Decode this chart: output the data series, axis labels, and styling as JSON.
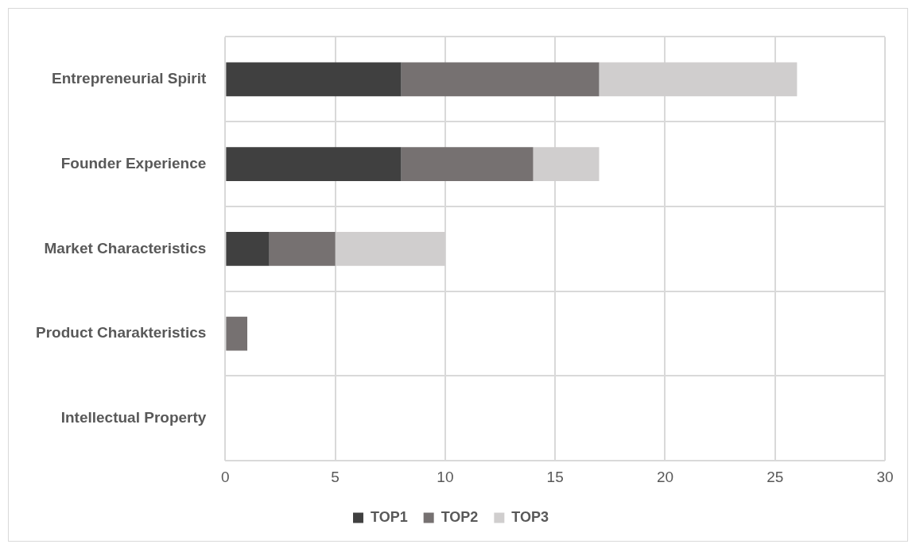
{
  "chart_data": {
    "type": "bar",
    "orientation": "horizontal",
    "stacked": true,
    "categories": [
      "Entrepreneurial Spirit",
      "Founder Experience",
      "Market Characteristics",
      "Product Charakteristics",
      "Intellectual Property"
    ],
    "series": [
      {
        "name": "TOP1",
        "color": "#404040",
        "values": [
          8,
          8,
          2,
          0,
          0
        ]
      },
      {
        "name": "TOP2",
        "color": "#767171",
        "values": [
          9,
          6,
          3,
          1,
          0
        ]
      },
      {
        "name": "TOP3",
        "color": "#d0cece",
        "values": [
          9,
          3,
          5,
          0,
          0
        ]
      }
    ],
    "xlim": [
      0,
      30
    ],
    "xticks": [
      0,
      5,
      10,
      15,
      20,
      25,
      30
    ],
    "grid": true,
    "legend": "bottom"
  }
}
